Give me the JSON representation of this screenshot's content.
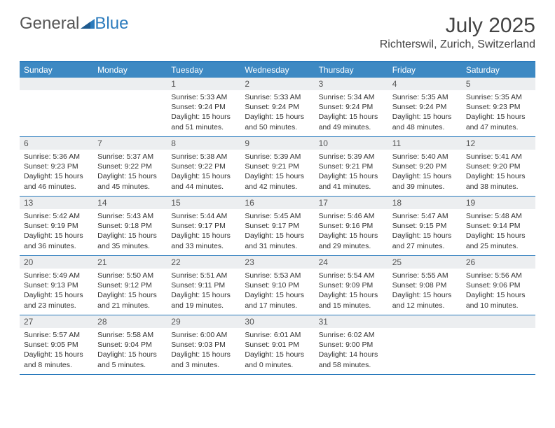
{
  "logo": {
    "text1": "General",
    "text2": "Blue"
  },
  "title": "July 2025",
  "location": "Richterswil, Zurich, Switzerland",
  "colors": {
    "header_bar": "#3d89c3",
    "border": "#2b7bbd",
    "daynum_bg": "#eceef0",
    "text": "#333333",
    "logo_gray": "#555555",
    "logo_blue": "#2b7bbd"
  },
  "weekdays": [
    "Sunday",
    "Monday",
    "Tuesday",
    "Wednesday",
    "Thursday",
    "Friday",
    "Saturday"
  ],
  "weeks": [
    [
      {
        "n": "",
        "lines": []
      },
      {
        "n": "",
        "lines": []
      },
      {
        "n": "1",
        "lines": [
          "Sunrise: 5:33 AM",
          "Sunset: 9:24 PM",
          "Daylight: 15 hours",
          "and 51 minutes."
        ]
      },
      {
        "n": "2",
        "lines": [
          "Sunrise: 5:33 AM",
          "Sunset: 9:24 PM",
          "Daylight: 15 hours",
          "and 50 minutes."
        ]
      },
      {
        "n": "3",
        "lines": [
          "Sunrise: 5:34 AM",
          "Sunset: 9:24 PM",
          "Daylight: 15 hours",
          "and 49 minutes."
        ]
      },
      {
        "n": "4",
        "lines": [
          "Sunrise: 5:35 AM",
          "Sunset: 9:24 PM",
          "Daylight: 15 hours",
          "and 48 minutes."
        ]
      },
      {
        "n": "5",
        "lines": [
          "Sunrise: 5:35 AM",
          "Sunset: 9:23 PM",
          "Daylight: 15 hours",
          "and 47 minutes."
        ]
      }
    ],
    [
      {
        "n": "6",
        "lines": [
          "Sunrise: 5:36 AM",
          "Sunset: 9:23 PM",
          "Daylight: 15 hours",
          "and 46 minutes."
        ]
      },
      {
        "n": "7",
        "lines": [
          "Sunrise: 5:37 AM",
          "Sunset: 9:22 PM",
          "Daylight: 15 hours",
          "and 45 minutes."
        ]
      },
      {
        "n": "8",
        "lines": [
          "Sunrise: 5:38 AM",
          "Sunset: 9:22 PM",
          "Daylight: 15 hours",
          "and 44 minutes."
        ]
      },
      {
        "n": "9",
        "lines": [
          "Sunrise: 5:39 AM",
          "Sunset: 9:21 PM",
          "Daylight: 15 hours",
          "and 42 minutes."
        ]
      },
      {
        "n": "10",
        "lines": [
          "Sunrise: 5:39 AM",
          "Sunset: 9:21 PM",
          "Daylight: 15 hours",
          "and 41 minutes."
        ]
      },
      {
        "n": "11",
        "lines": [
          "Sunrise: 5:40 AM",
          "Sunset: 9:20 PM",
          "Daylight: 15 hours",
          "and 39 minutes."
        ]
      },
      {
        "n": "12",
        "lines": [
          "Sunrise: 5:41 AM",
          "Sunset: 9:20 PM",
          "Daylight: 15 hours",
          "and 38 minutes."
        ]
      }
    ],
    [
      {
        "n": "13",
        "lines": [
          "Sunrise: 5:42 AM",
          "Sunset: 9:19 PM",
          "Daylight: 15 hours",
          "and 36 minutes."
        ]
      },
      {
        "n": "14",
        "lines": [
          "Sunrise: 5:43 AM",
          "Sunset: 9:18 PM",
          "Daylight: 15 hours",
          "and 35 minutes."
        ]
      },
      {
        "n": "15",
        "lines": [
          "Sunrise: 5:44 AM",
          "Sunset: 9:17 PM",
          "Daylight: 15 hours",
          "and 33 minutes."
        ]
      },
      {
        "n": "16",
        "lines": [
          "Sunrise: 5:45 AM",
          "Sunset: 9:17 PM",
          "Daylight: 15 hours",
          "and 31 minutes."
        ]
      },
      {
        "n": "17",
        "lines": [
          "Sunrise: 5:46 AM",
          "Sunset: 9:16 PM",
          "Daylight: 15 hours",
          "and 29 minutes."
        ]
      },
      {
        "n": "18",
        "lines": [
          "Sunrise: 5:47 AM",
          "Sunset: 9:15 PM",
          "Daylight: 15 hours",
          "and 27 minutes."
        ]
      },
      {
        "n": "19",
        "lines": [
          "Sunrise: 5:48 AM",
          "Sunset: 9:14 PM",
          "Daylight: 15 hours",
          "and 25 minutes."
        ]
      }
    ],
    [
      {
        "n": "20",
        "lines": [
          "Sunrise: 5:49 AM",
          "Sunset: 9:13 PM",
          "Daylight: 15 hours",
          "and 23 minutes."
        ]
      },
      {
        "n": "21",
        "lines": [
          "Sunrise: 5:50 AM",
          "Sunset: 9:12 PM",
          "Daylight: 15 hours",
          "and 21 minutes."
        ]
      },
      {
        "n": "22",
        "lines": [
          "Sunrise: 5:51 AM",
          "Sunset: 9:11 PM",
          "Daylight: 15 hours",
          "and 19 minutes."
        ]
      },
      {
        "n": "23",
        "lines": [
          "Sunrise: 5:53 AM",
          "Sunset: 9:10 PM",
          "Daylight: 15 hours",
          "and 17 minutes."
        ]
      },
      {
        "n": "24",
        "lines": [
          "Sunrise: 5:54 AM",
          "Sunset: 9:09 PM",
          "Daylight: 15 hours",
          "and 15 minutes."
        ]
      },
      {
        "n": "25",
        "lines": [
          "Sunrise: 5:55 AM",
          "Sunset: 9:08 PM",
          "Daylight: 15 hours",
          "and 12 minutes."
        ]
      },
      {
        "n": "26",
        "lines": [
          "Sunrise: 5:56 AM",
          "Sunset: 9:06 PM",
          "Daylight: 15 hours",
          "and 10 minutes."
        ]
      }
    ],
    [
      {
        "n": "27",
        "lines": [
          "Sunrise: 5:57 AM",
          "Sunset: 9:05 PM",
          "Daylight: 15 hours",
          "and 8 minutes."
        ]
      },
      {
        "n": "28",
        "lines": [
          "Sunrise: 5:58 AM",
          "Sunset: 9:04 PM",
          "Daylight: 15 hours",
          "and 5 minutes."
        ]
      },
      {
        "n": "29",
        "lines": [
          "Sunrise: 6:00 AM",
          "Sunset: 9:03 PM",
          "Daylight: 15 hours",
          "and 3 minutes."
        ]
      },
      {
        "n": "30",
        "lines": [
          "Sunrise: 6:01 AM",
          "Sunset: 9:01 PM",
          "Daylight: 15 hours",
          "and 0 minutes."
        ]
      },
      {
        "n": "31",
        "lines": [
          "Sunrise: 6:02 AM",
          "Sunset: 9:00 PM",
          "Daylight: 14 hours",
          "and 58 minutes."
        ]
      },
      {
        "n": "",
        "lines": []
      },
      {
        "n": "",
        "lines": []
      }
    ]
  ]
}
